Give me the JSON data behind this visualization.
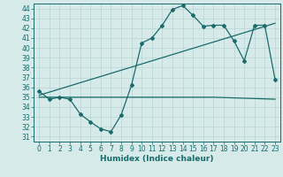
{
  "title": "",
  "xlabel": "Humidex (Indice chaleur)",
  "xlim": [
    -0.5,
    23.5
  ],
  "ylim": [
    30.5,
    44.5
  ],
  "yticks": [
    31,
    32,
    33,
    34,
    35,
    36,
    37,
    38,
    39,
    40,
    41,
    42,
    43,
    44
  ],
  "xticks": [
    0,
    1,
    2,
    3,
    4,
    5,
    6,
    7,
    8,
    9,
    10,
    11,
    12,
    13,
    14,
    15,
    16,
    17,
    18,
    19,
    20,
    21,
    22,
    23
  ],
  "bg_color": "#d6eaea",
  "grid_color": "#b8d4d4",
  "line_color": "#1a6b6b",
  "line1_x": [
    0,
    1,
    2,
    3,
    4,
    5,
    6,
    7,
    8,
    9,
    10,
    11,
    12,
    13,
    14,
    15,
    16,
    17,
    18,
    19,
    20,
    21,
    22,
    23
  ],
  "line1_y": [
    35.6,
    34.8,
    35.0,
    34.8,
    33.3,
    32.5,
    31.8,
    31.5,
    33.2,
    36.2,
    40.5,
    41.0,
    42.3,
    43.9,
    44.3,
    43.3,
    42.2,
    42.3,
    42.3,
    40.7,
    38.7,
    42.3,
    42.3,
    36.8
  ],
  "line2_x": [
    0,
    17,
    23
  ],
  "line2_y": [
    35.0,
    35.0,
    34.8
  ],
  "line3_x": [
    0,
    23
  ],
  "line3_y": [
    35.2,
    42.5
  ],
  "marker": "D",
  "markersize": 2.0,
  "linewidth": 0.9,
  "tick_fontsize": 5.5,
  "xlabel_fontsize": 6.5
}
